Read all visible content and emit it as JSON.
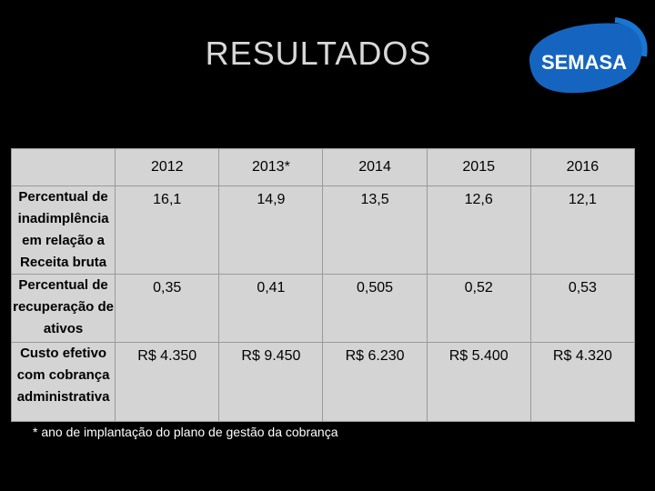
{
  "slide": {
    "title": "RESULTADOS",
    "logo_text": "SEMASA",
    "footnote": "* ano de implantação do plano de gestão da cobrança"
  },
  "table": {
    "years": [
      "2012",
      "2013*",
      "2014",
      "2015",
      "2016"
    ],
    "rows": [
      {
        "label": "Percentual de inadimplência em relação a Receita bruta",
        "values": [
          "16,1",
          "14,9",
          "13,5",
          "12,6",
          "12,1"
        ]
      },
      {
        "label": "Percentual de recuperação de ativos",
        "values": [
          "0,35",
          "0,41",
          "0,505",
          "0,52",
          "0,53"
        ]
      },
      {
        "label": "Custo efetivo com cobrança administrativa",
        "values": [
          "R$ 4.350",
          "R$ 9.450",
          "R$ 6.230",
          "R$ 5.400",
          "R$ 4.320"
        ]
      }
    ]
  },
  "colors": {
    "background": "#000000",
    "table_fill": "#d4d4d4",
    "logo_blue": "#1565c0"
  }
}
